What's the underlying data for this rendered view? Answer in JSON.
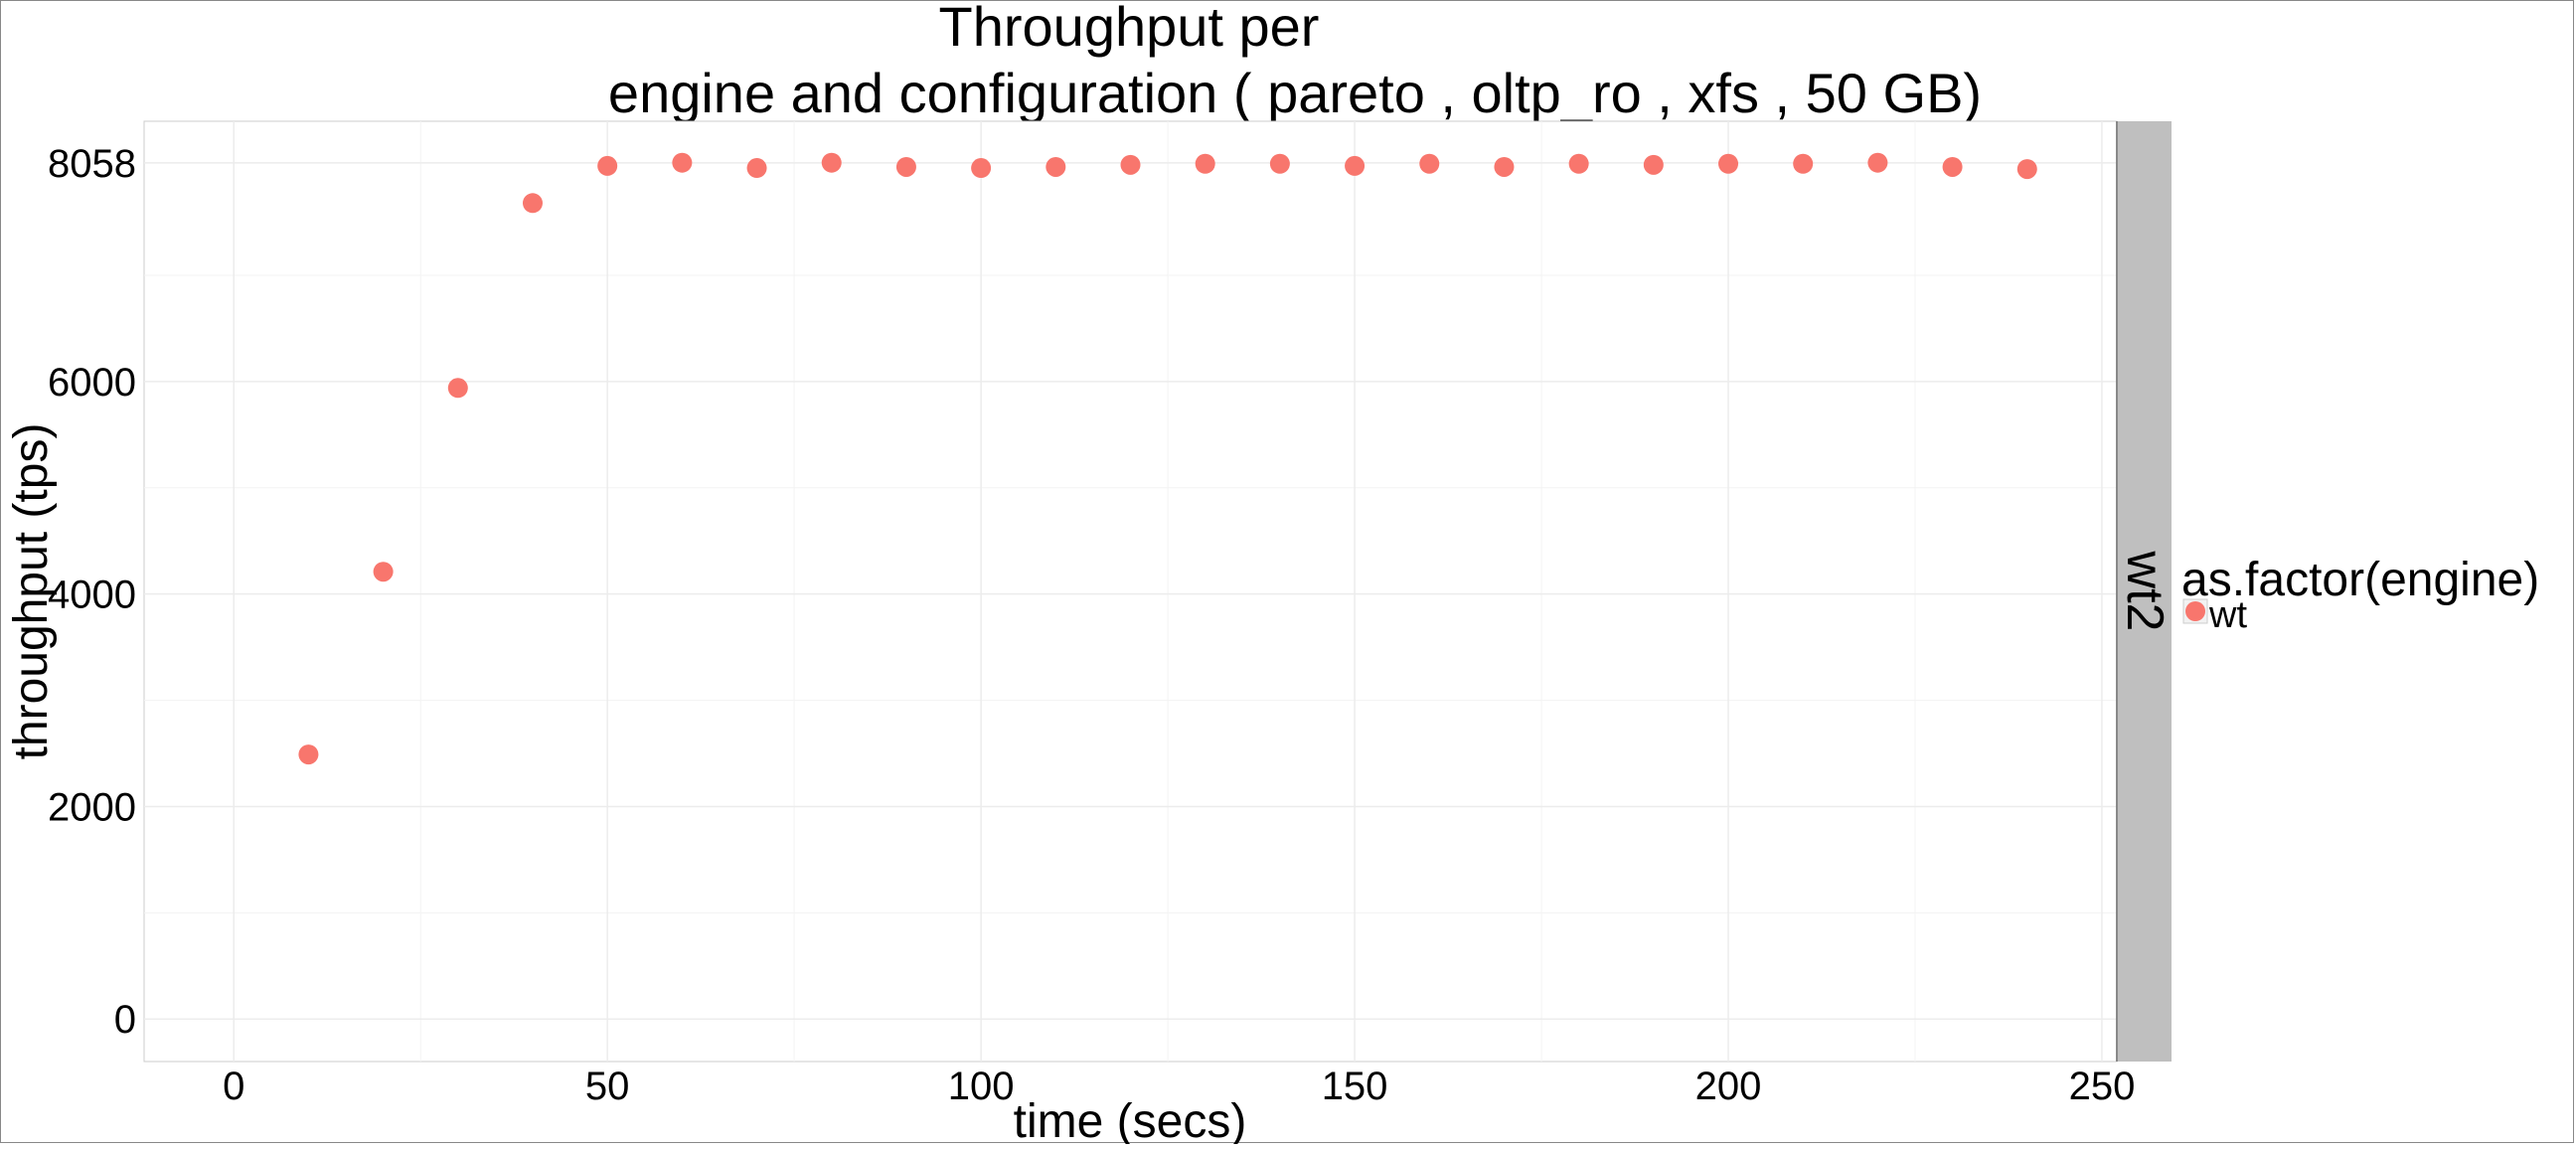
{
  "chart_data": {
    "type": "scatter",
    "title_line1": "Throughput per",
    "title_line2": "engine and configuration ( pareto , oltp_ro , xfs ,  50 GB)",
    "xlabel": "time (secs)",
    "ylabel": "throughput (tps)",
    "xlim": [
      -12,
      252
    ],
    "ylim": [
      -400,
      8450
    ],
    "x_ticks": [
      0,
      50,
      100,
      150,
      200,
      250
    ],
    "y_ticks": [
      0,
      2000,
      4000,
      6000,
      8058
    ],
    "grid": true,
    "facet_label": "wt2",
    "legend": {
      "title": "as.factor(engine)",
      "position": "right"
    },
    "series": [
      {
        "name": "wt",
        "color": "#F8766D",
        "x": [
          10,
          20,
          30,
          40,
          50,
          60,
          70,
          80,
          90,
          100,
          110,
          120,
          130,
          140,
          150,
          160,
          170,
          180,
          190,
          200,
          210,
          220,
          230,
          240
        ],
        "y": [
          2490,
          4210,
          5940,
          7680,
          8030,
          8060,
          8010,
          8060,
          8020,
          8010,
          8020,
          8040,
          8050,
          8050,
          8030,
          8050,
          8020,
          8050,
          8040,
          8050,
          8050,
          8060,
          8020,
          8000
        ]
      }
    ]
  }
}
